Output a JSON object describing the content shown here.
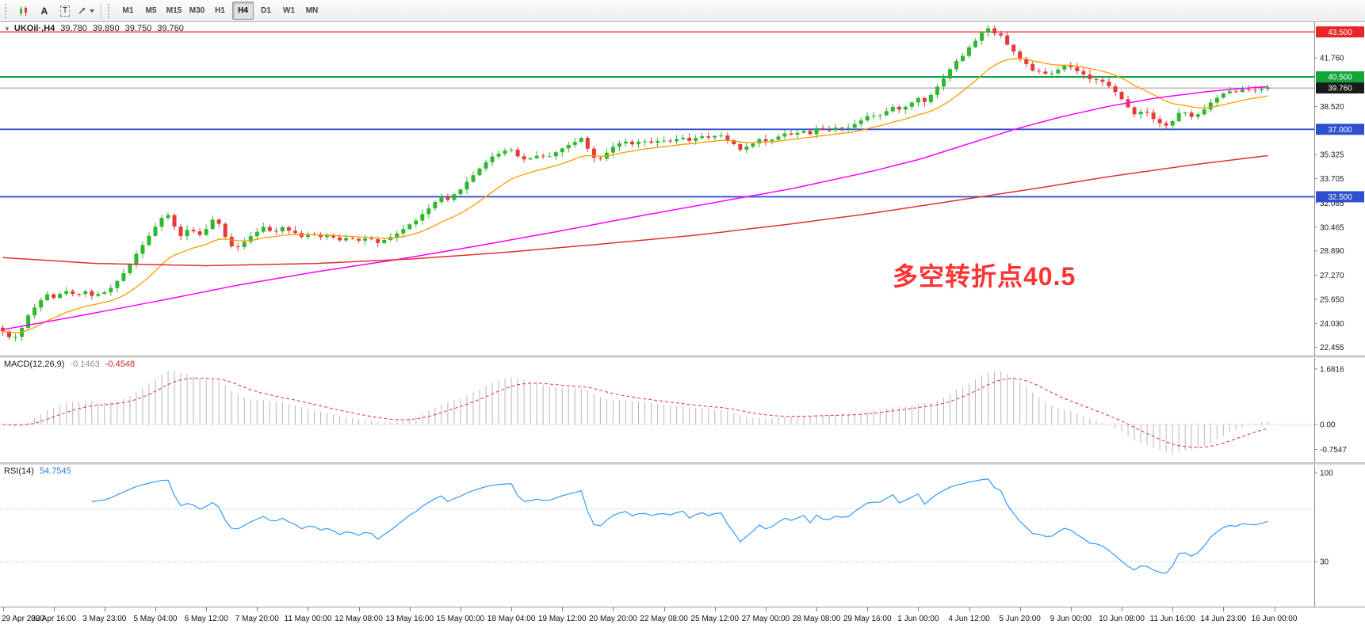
{
  "icons": {
    "collapse": "▼"
  },
  "toolbar": {
    "tools": [
      {
        "name": "chart-icon",
        "glyph": ""
      },
      {
        "name": "text-tool-icon",
        "glyph": "A"
      },
      {
        "name": "label-tool-icon",
        "glyph": "T"
      },
      {
        "name": "arrows-tool-icon",
        "glyph": ""
      }
    ],
    "timeframes": {
      "items": [
        "M1",
        "M5",
        "M15",
        "M30",
        "H1",
        "H4",
        "D1",
        "W1",
        "MN"
      ],
      "active": "H4"
    }
  },
  "chart_header": {
    "symbol": "UKOil·,H4",
    "open": "39.780",
    "high": "39.890",
    "low": "39.750",
    "close": "39.760"
  },
  "indicators": {
    "macd": {
      "label": "MACD(12,26,9)",
      "value_main": "-0.1463",
      "value_signal": "-0.4548",
      "scale": [
        "1.6816",
        "0.00",
        "-0.7547"
      ]
    },
    "rsi": {
      "label": "RSI(14)",
      "value": "54.7545",
      "scale": [
        "100",
        "30"
      ]
    }
  },
  "annotation": {
    "text": "多空转折点40.5",
    "color": "#ff3333"
  },
  "chart_data": {
    "type": "candlestick",
    "symbol": "UKOil",
    "timeframe": "H4",
    "current_ohlc": {
      "open": 39.78,
      "high": 39.89,
      "low": 39.75,
      "close": 39.76
    },
    "bar_count": 200,
    "right_margin_bars": 7,
    "price_axis": {
      "min": 21.9,
      "max": 44.15,
      "ticks": [
        "41.760",
        "38.520",
        "35.325",
        "33.705",
        "32.085",
        "30.465",
        "28.890",
        "27.270",
        "25.650",
        "24.030",
        "22.455"
      ]
    },
    "horizontal_lines": [
      {
        "price": 43.5,
        "color": "#ff2a2a",
        "width": 1.4,
        "badge": "43.500",
        "badge_color": "#e82626"
      },
      {
        "price": 40.5,
        "color": "#0aa146",
        "width": 2.2,
        "badge": "40.500",
        "badge_color": "#12a537"
      },
      {
        "price": 39.76,
        "color": "#9a9a9a",
        "width": 1,
        "badge": "39.760",
        "badge_color": "#1a1a1a"
      },
      {
        "price": 37.0,
        "color": "#2f52d0",
        "width": 1.8,
        "badge": "37.000",
        "badge_color": "#2d4fd0"
      },
      {
        "price": 32.5,
        "color": "#2f52d0",
        "width": 1.8,
        "badge": "32.500",
        "badge_color": "#2d4fd0"
      }
    ],
    "colors": {
      "up": "#2eb82e",
      "down": "#e63939"
    },
    "ma_fast": {
      "color": "#ff9b00",
      "period": 16
    },
    "ma_mid": {
      "color": "#ff00ff",
      "path": [
        [
          0,
          23.6
        ],
        [
          100,
          24.55
        ],
        [
          200,
          25.55
        ],
        [
          300,
          26.6
        ],
        [
          400,
          27.5
        ],
        [
          500,
          28.3
        ],
        [
          600,
          29.2
        ],
        [
          700,
          30.15
        ],
        [
          800,
          31.15
        ],
        [
          900,
          32.1
        ],
        [
          1000,
          33.05
        ],
        [
          1100,
          34.2
        ],
        [
          1160,
          35.0
        ],
        [
          1220,
          36.0
        ],
        [
          1280,
          37.0
        ],
        [
          1340,
          37.85
        ],
        [
          1400,
          38.55
        ],
        [
          1460,
          39.1
        ],
        [
          1520,
          39.5
        ],
        [
          1560,
          39.7
        ],
        [
          1600,
          39.85
        ]
      ]
    },
    "ma_slow": {
      "color": "#e03131",
      "path": [
        [
          0,
          28.45
        ],
        [
          120,
          28.05
        ],
        [
          260,
          27.9
        ],
        [
          400,
          28.05
        ],
        [
          520,
          28.35
        ],
        [
          640,
          28.8
        ],
        [
          760,
          29.35
        ],
        [
          880,
          29.95
        ],
        [
          1000,
          30.7
        ],
        [
          1100,
          31.4
        ],
        [
          1200,
          32.2
        ],
        [
          1300,
          33.0
        ],
        [
          1400,
          33.85
        ],
        [
          1500,
          34.6
        ],
        [
          1600,
          35.25
        ]
      ]
    },
    "close_path": [
      [
        0,
        23.7
      ],
      [
        8,
        23.25
      ],
      [
        16,
        22.95
      ],
      [
        26,
        23.6
      ],
      [
        36,
        24.6
      ],
      [
        48,
        25.4
      ],
      [
        58,
        26.1
      ],
      [
        70,
        25.7
      ],
      [
        82,
        26.3
      ],
      [
        94,
        25.9
      ],
      [
        106,
        26.25
      ],
      [
        118,
        25.85
      ],
      [
        130,
        26.1
      ],
      [
        142,
        26.45
      ],
      [
        152,
        27.1
      ],
      [
        162,
        27.9
      ],
      [
        172,
        28.7
      ],
      [
        182,
        29.5
      ],
      [
        192,
        30.2
      ],
      [
        200,
        30.8
      ],
      [
        208,
        31.25
      ],
      [
        214,
        31.3
      ],
      [
        220,
        30.5
      ],
      [
        228,
        29.9
      ],
      [
        238,
        30.35
      ],
      [
        248,
        30.1
      ],
      [
        256,
        29.9
      ],
      [
        264,
        30.7
      ],
      [
        270,
        31.1
      ],
      [
        278,
        30.5
      ],
      [
        286,
        29.6
      ],
      [
        296,
        29.0
      ],
      [
        308,
        29.5
      ],
      [
        320,
        30.1
      ],
      [
        332,
        30.45
      ],
      [
        344,
        30.1
      ],
      [
        356,
        30.5
      ],
      [
        368,
        30.2
      ],
      [
        380,
        29.85
      ],
      [
        392,
        30.1
      ],
      [
        404,
        29.75
      ],
      [
        416,
        29.95
      ],
      [
        428,
        29.6
      ],
      [
        440,
        29.85
      ],
      [
        452,
        29.55
      ],
      [
        464,
        29.8
      ],
      [
        476,
        29.35
      ],
      [
        486,
        29.6
      ],
      [
        496,
        29.9
      ],
      [
        506,
        30.25
      ],
      [
        516,
        30.6
      ],
      [
        526,
        31.0
      ],
      [
        538,
        31.55
      ],
      [
        548,
        32.1
      ],
      [
        558,
        32.5
      ],
      [
        566,
        32.2
      ],
      [
        574,
        32.7
      ],
      [
        586,
        33.3
      ],
      [
        598,
        34.0
      ],
      [
        610,
        34.7
      ],
      [
        622,
        35.2
      ],
      [
        634,
        35.55
      ],
      [
        644,
        35.7
      ],
      [
        654,
        35.2
      ],
      [
        664,
        34.9
      ],
      [
        676,
        35.3
      ],
      [
        688,
        35.1
      ],
      [
        700,
        35.45
      ],
      [
        712,
        35.8
      ],
      [
        724,
        36.1
      ],
      [
        734,
        36.5
      ],
      [
        742,
        35.7
      ],
      [
        752,
        34.85
      ],
      [
        762,
        35.3
      ],
      [
        774,
        35.9
      ],
      [
        786,
        36.2
      ],
      [
        798,
        35.95
      ],
      [
        810,
        36.25
      ],
      [
        822,
        36.05
      ],
      [
        834,
        36.3
      ],
      [
        846,
        36.15
      ],
      [
        858,
        36.45
      ],
      [
        870,
        36.25
      ],
      [
        882,
        36.55
      ],
      [
        894,
        36.4
      ],
      [
        906,
        36.65
      ],
      [
        916,
        36.35
      ],
      [
        926,
        36.0
      ],
      [
        936,
        35.6
      ],
      [
        946,
        35.95
      ],
      [
        956,
        36.35
      ],
      [
        968,
        36.15
      ],
      [
        980,
        36.5
      ],
      [
        992,
        36.8
      ],
      [
        1002,
        36.55
      ],
      [
        1012,
        37.0
      ],
      [
        1022,
        36.7
      ],
      [
        1032,
        37.1
      ],
      [
        1044,
        36.85
      ],
      [
        1056,
        37.2
      ],
      [
        1068,
        37.05
      ],
      [
        1078,
        37.35
      ],
      [
        1088,
        37.7
      ],
      [
        1098,
        38.05
      ],
      [
        1108,
        37.85
      ],
      [
        1118,
        38.2
      ],
      [
        1128,
        38.5
      ],
      [
        1138,
        38.3
      ],
      [
        1148,
        38.7
      ],
      [
        1158,
        39.1
      ],
      [
        1166,
        38.85
      ],
      [
        1174,
        39.3
      ],
      [
        1182,
        39.8
      ],
      [
        1190,
        40.4
      ],
      [
        1198,
        41.0
      ],
      [
        1206,
        41.5
      ],
      [
        1214,
        41.9
      ],
      [
        1222,
        42.4
      ],
      [
        1230,
        42.9
      ],
      [
        1238,
        43.4
      ],
      [
        1246,
        43.75
      ],
      [
        1252,
        43.3
      ],
      [
        1258,
        43.65
      ],
      [
        1266,
        43.0
      ],
      [
        1274,
        42.4
      ],
      [
        1282,
        42.0
      ],
      [
        1290,
        41.6
      ],
      [
        1298,
        41.1
      ],
      [
        1306,
        40.7
      ],
      [
        1314,
        40.95
      ],
      [
        1322,
        40.55
      ],
      [
        1330,
        40.8
      ],
      [
        1338,
        41.05
      ],
      [
        1346,
        41.3
      ],
      [
        1354,
        41.05
      ],
      [
        1362,
        40.75
      ],
      [
        1370,
        40.5
      ],
      [
        1378,
        40.2
      ],
      [
        1386,
        40.45
      ],
      [
        1394,
        40.1
      ],
      [
        1402,
        39.7
      ],
      [
        1410,
        39.3
      ],
      [
        1418,
        38.8
      ],
      [
        1426,
        38.3
      ],
      [
        1434,
        37.9
      ],
      [
        1442,
        38.35
      ],
      [
        1450,
        38.0
      ],
      [
        1458,
        37.6
      ],
      [
        1466,
        37.35
      ],
      [
        1474,
        37.2
      ],
      [
        1482,
        37.7
      ],
      [
        1490,
        38.3
      ],
      [
        1498,
        38.0
      ],
      [
        1506,
        37.7
      ],
      [
        1514,
        38.1
      ],
      [
        1522,
        38.5
      ],
      [
        1530,
        38.9
      ],
      [
        1538,
        39.2
      ],
      [
        1546,
        39.45
      ],
      [
        1554,
        39.65
      ],
      [
        1562,
        39.5
      ],
      [
        1570,
        39.7
      ],
      [
        1580,
        39.6
      ],
      [
        1590,
        39.75
      ],
      [
        1600,
        39.76
      ]
    ],
    "macd": {
      "params": [
        12,
        26,
        9
      ],
      "hist_color": "#b8b8b8",
      "signal_color": "#e03333"
    },
    "rsi": {
      "period": 14,
      "color": "#3399ff",
      "levels": [
        70,
        30
      ]
    },
    "time_labels": [
      "29 Apr 2020",
      "30 Apr 16:00",
      "3 May 23:00",
      "5 May 04:00",
      "6 May 12:00",
      "7 May 20:00",
      "11 May 00:00",
      "12 May 08:00",
      "13 May 16:00",
      "15 May 00:00",
      "18 May 04:00",
      "19 May 12:00",
      "20 May 20:00",
      "22 May 08:00",
      "25 May 12:00",
      "27 May 00:00",
      "28 May 08:00",
      "29 May 16:00",
      "1 Jun 00:00",
      "4 Jun 12:00",
      "5 Jun 20:00",
      "9 Jun 00:00",
      "10 Jun 08:00",
      "11 Jun 16:00",
      "14 Jun 23:00",
      "16 Jun 00:00"
    ]
  }
}
